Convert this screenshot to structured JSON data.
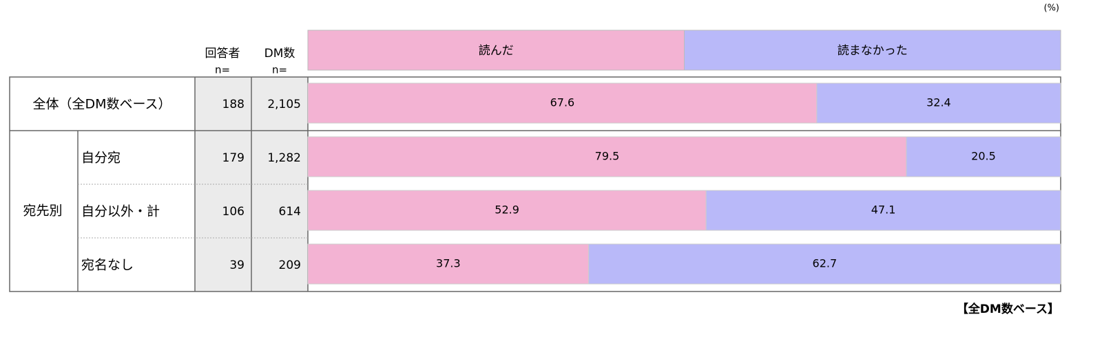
{
  "chart_data": {
    "type": "bar",
    "orientation": "horizontal",
    "stacked": true,
    "unit_label": "(%)",
    "footnote": "【全DM数ベース】",
    "column_headers": [
      {
        "title": "回答者",
        "sub": "n="
      },
      {
        "title": "DM数",
        "sub": "n="
      }
    ],
    "group_label": "宛先別",
    "categories": [
      "全体（全DM数ベース）",
      "自分宛",
      "自分以外・計",
      "宛名なし"
    ],
    "respondents_n": [
      "188",
      "179",
      "106",
      "39"
    ],
    "dm_n": [
      "2,105",
      "1,282",
      "614",
      "209"
    ],
    "series": [
      {
        "name": "読んだ",
        "color": "#f3b3d3",
        "values": [
          67.6,
          79.5,
          52.9,
          37.3
        ]
      },
      {
        "name": "読まなかった",
        "color": "#b9b9f9",
        "values": [
          32.4,
          20.5,
          47.1,
          62.7
        ]
      }
    ],
    "xlim": [
      0,
      100
    ]
  }
}
